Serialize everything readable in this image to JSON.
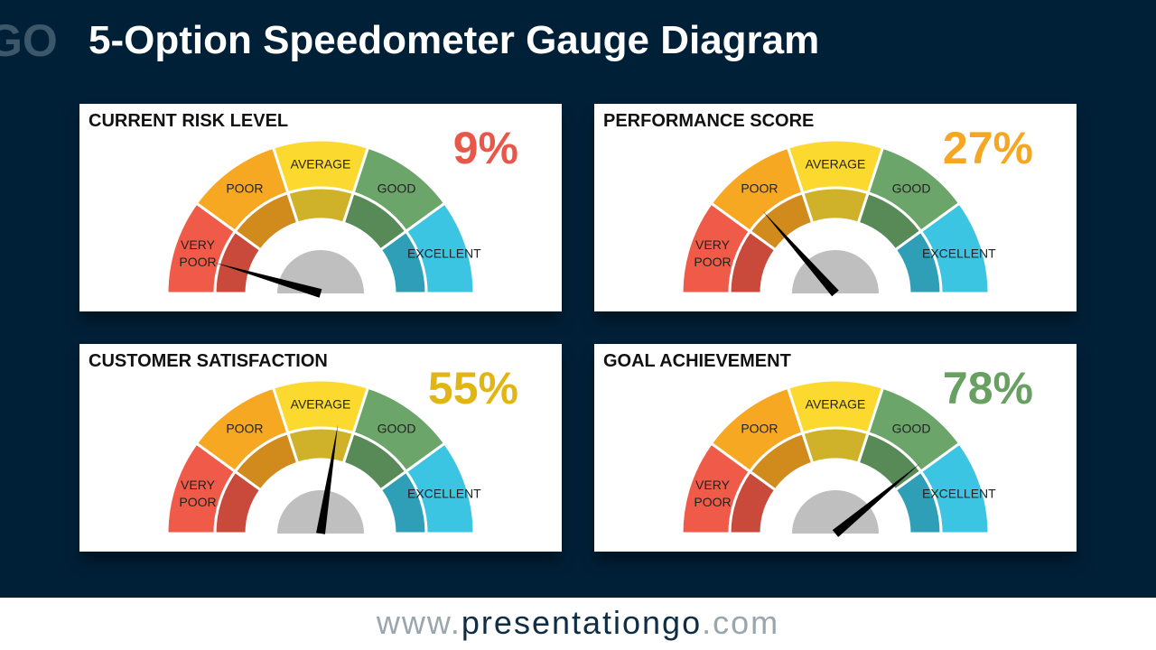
{
  "logo": "GO",
  "title": "5-Option Speedometer Gauge Diagram",
  "gauge_labels": [
    "VERY POOR",
    "POOR",
    "AVERAGE",
    "GOOD",
    "EXCELLENT"
  ],
  "gauges": [
    {
      "title": "CURRENT RISK LEVEL",
      "value": 9,
      "value_label": "9%",
      "color": "#e8584a"
    },
    {
      "title": "PERFORMANCE SCORE",
      "value": 27,
      "value_label": "27%",
      "color": "#f5a623"
    },
    {
      "title": "CUSTOMER SATISFACTION",
      "value": 55,
      "value_label": "55%",
      "color": "#e0b514"
    },
    {
      "title": "GOAL ACHIEVEMENT",
      "value": 78,
      "value_label": "78%",
      "color": "#67a060"
    }
  ],
  "footer": {
    "prefix": "www.",
    "brand": "presentationgo",
    "suffix": ".com"
  }
}
